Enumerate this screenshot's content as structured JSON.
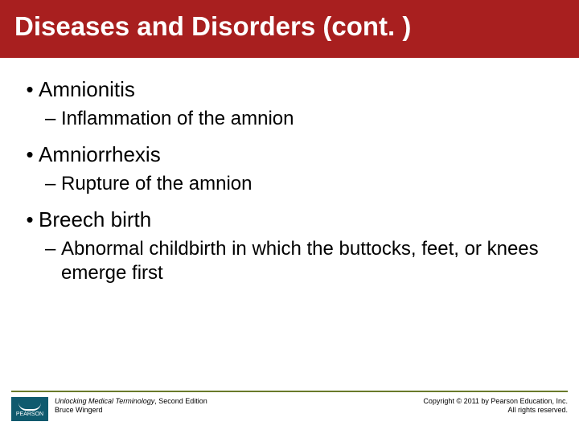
{
  "colors": {
    "header_bg": "#a81f1f",
    "accent_line": "#6a7a2a",
    "logo_bg": "#0f5a6e",
    "text": "#000000"
  },
  "typography": {
    "title_fontsize": 33,
    "term_fontsize": 26,
    "definition_fontsize": 24,
    "footer_fontsize": 9
  },
  "title": "Diseases and Disorders (cont. )",
  "terms": [
    {
      "term": "Amnionitis",
      "definition": "Inflammation of the amnion"
    },
    {
      "term": "Amniorrhexis",
      "definition": "Rupture of the amnion"
    },
    {
      "term": "Breech birth",
      "definition": "Abnormal childbirth in which the buttocks, feet, or knees emerge first"
    }
  ],
  "footer": {
    "logo_text": "PEARSON",
    "book_title": "Unlocking Medical Terminology",
    "book_edition": ", Second Edition",
    "author": "Bruce Wingerd",
    "copyright_line1": "Copyright © 2011 by Pearson Education, Inc.",
    "copyright_line2": "All rights reserved."
  }
}
